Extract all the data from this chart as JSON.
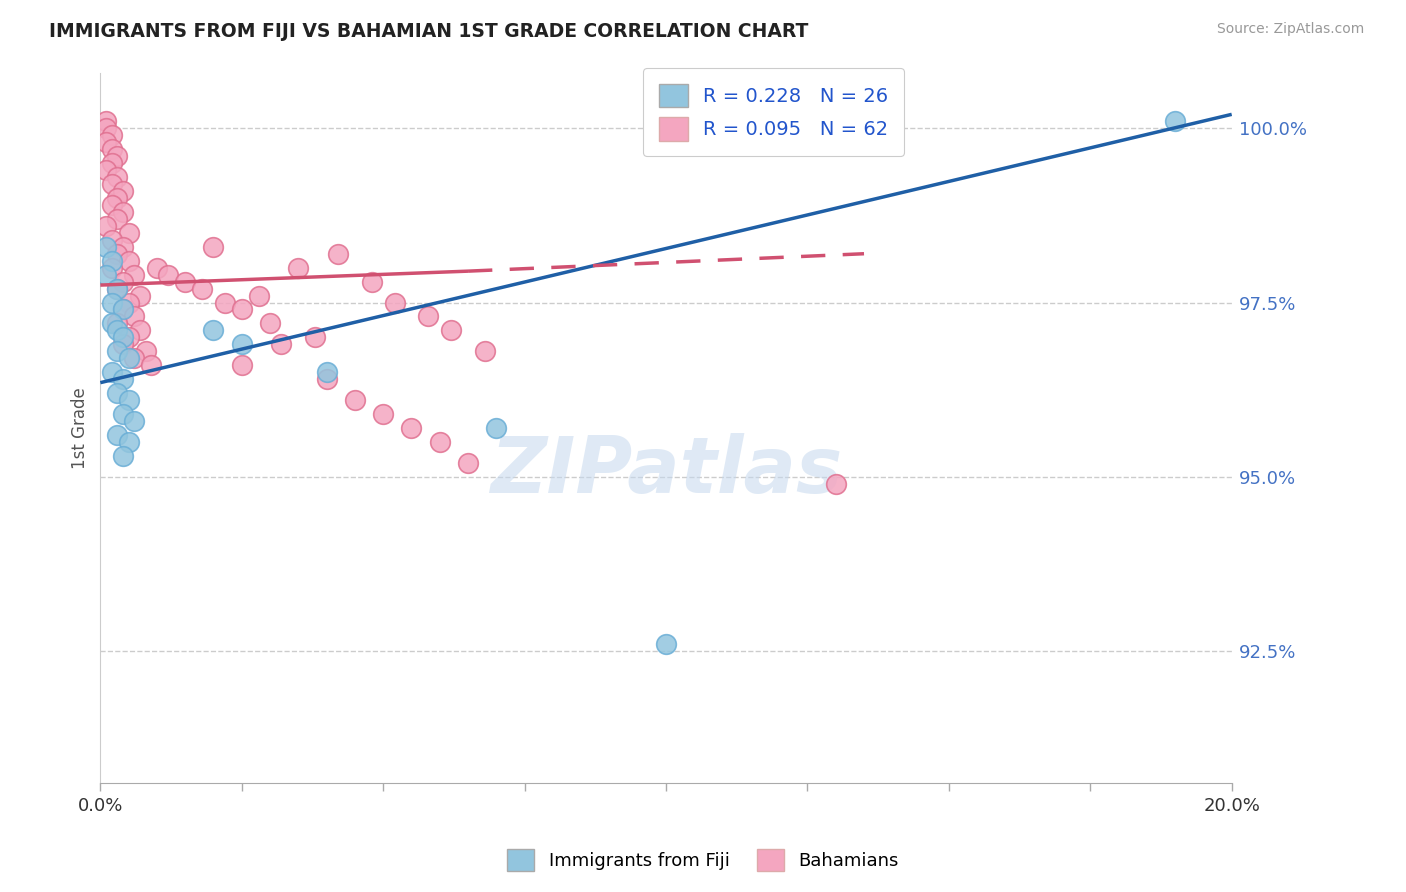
{
  "title": "IMMIGRANTS FROM FIJI VS BAHAMIAN 1ST GRADE CORRELATION CHART",
  "source": "Source: ZipAtlas.com",
  "xlabel": "",
  "ylabel": "1st Grade",
  "xlim": [
    0.0,
    0.2
  ],
  "ylim": [
    0.906,
    1.008
  ],
  "xticks": [
    0.0,
    0.025,
    0.05,
    0.075,
    0.1,
    0.125,
    0.15,
    0.175,
    0.2
  ],
  "xticklabels": [
    "0.0%",
    "",
    "",
    "",
    "",
    "",
    "",
    "",
    "20.0%"
  ],
  "ytick_positions": [
    0.925,
    0.95,
    0.975,
    1.0
  ],
  "ytick_labels": [
    "92.5%",
    "95.0%",
    "97.5%",
    "100.0%"
  ],
  "blue_R": 0.228,
  "blue_N": 26,
  "pink_R": 0.095,
  "pink_N": 62,
  "blue_label": "Immigrants from Fiji",
  "pink_label": "Bahamians",
  "blue_color": "#92c5de",
  "pink_color": "#f4a6c0",
  "blue_edge_color": "#6aaed6",
  "pink_edge_color": "#e07090",
  "blue_scatter": [
    [
      0.001,
      0.983
    ],
    [
      0.002,
      0.981
    ],
    [
      0.001,
      0.979
    ],
    [
      0.003,
      0.977
    ],
    [
      0.002,
      0.975
    ],
    [
      0.004,
      0.974
    ],
    [
      0.002,
      0.972
    ],
    [
      0.003,
      0.971
    ],
    [
      0.004,
      0.97
    ],
    [
      0.003,
      0.968
    ],
    [
      0.005,
      0.967
    ],
    [
      0.002,
      0.965
    ],
    [
      0.004,
      0.964
    ],
    [
      0.003,
      0.962
    ],
    [
      0.005,
      0.961
    ],
    [
      0.004,
      0.959
    ],
    [
      0.006,
      0.958
    ],
    [
      0.003,
      0.956
    ],
    [
      0.005,
      0.955
    ],
    [
      0.004,
      0.953
    ],
    [
      0.02,
      0.971
    ],
    [
      0.025,
      0.969
    ],
    [
      0.04,
      0.965
    ],
    [
      0.07,
      0.957
    ],
    [
      0.1,
      0.926
    ],
    [
      0.19,
      1.001
    ]
  ],
  "pink_scatter": [
    [
      0.001,
      1.001
    ],
    [
      0.001,
      1.0
    ],
    [
      0.002,
      0.999
    ],
    [
      0.001,
      0.998
    ],
    [
      0.002,
      0.997
    ],
    [
      0.003,
      0.996
    ],
    [
      0.002,
      0.995
    ],
    [
      0.001,
      0.994
    ],
    [
      0.003,
      0.993
    ],
    [
      0.002,
      0.992
    ],
    [
      0.004,
      0.991
    ],
    [
      0.003,
      0.99
    ],
    [
      0.002,
      0.989
    ],
    [
      0.004,
      0.988
    ],
    [
      0.003,
      0.987
    ],
    [
      0.001,
      0.986
    ],
    [
      0.005,
      0.985
    ],
    [
      0.002,
      0.984
    ],
    [
      0.004,
      0.983
    ],
    [
      0.003,
      0.982
    ],
    [
      0.005,
      0.981
    ],
    [
      0.002,
      0.98
    ],
    [
      0.006,
      0.979
    ],
    [
      0.004,
      0.978
    ],
    [
      0.003,
      0.977
    ],
    [
      0.007,
      0.976
    ],
    [
      0.005,
      0.975
    ],
    [
      0.004,
      0.974
    ],
    [
      0.006,
      0.973
    ],
    [
      0.003,
      0.972
    ],
    [
      0.007,
      0.971
    ],
    [
      0.005,
      0.97
    ],
    [
      0.004,
      0.969
    ],
    [
      0.008,
      0.968
    ],
    [
      0.006,
      0.967
    ],
    [
      0.009,
      0.966
    ],
    [
      0.01,
      0.98
    ],
    [
      0.012,
      0.979
    ],
    [
      0.015,
      0.978
    ],
    [
      0.018,
      0.977
    ],
    [
      0.02,
      0.983
    ],
    [
      0.022,
      0.975
    ],
    [
      0.025,
      0.974
    ],
    [
      0.028,
      0.976
    ],
    [
      0.03,
      0.972
    ],
    [
      0.035,
      0.98
    ],
    [
      0.038,
      0.97
    ],
    [
      0.042,
      0.982
    ],
    [
      0.048,
      0.978
    ],
    [
      0.052,
      0.975
    ],
    [
      0.058,
      0.973
    ],
    [
      0.062,
      0.971
    ],
    [
      0.068,
      0.968
    ],
    [
      0.032,
      0.969
    ],
    [
      0.025,
      0.966
    ],
    [
      0.04,
      0.964
    ],
    [
      0.045,
      0.961
    ],
    [
      0.05,
      0.959
    ],
    [
      0.055,
      0.957
    ],
    [
      0.06,
      0.955
    ],
    [
      0.065,
      0.952
    ],
    [
      0.13,
      0.949
    ]
  ],
  "blue_line": [
    [
      0.0,
      0.9635
    ],
    [
      0.2,
      1.002
    ]
  ],
  "pink_line_solid": [
    [
      0.0,
      0.9775
    ],
    [
      0.065,
      0.9795
    ]
  ],
  "pink_line_dash": [
    [
      0.065,
      0.9795
    ],
    [
      0.135,
      0.982
    ]
  ],
  "watermark": "ZIPatlas",
  "background_color": "#ffffff",
  "grid_color": "#cccccc",
  "title_color": "#222222",
  "axis_label_color": "#555555",
  "tick_color": "#4472c4",
  "blue_line_color": "#1f5fa6",
  "pink_line_color": "#d05070"
}
